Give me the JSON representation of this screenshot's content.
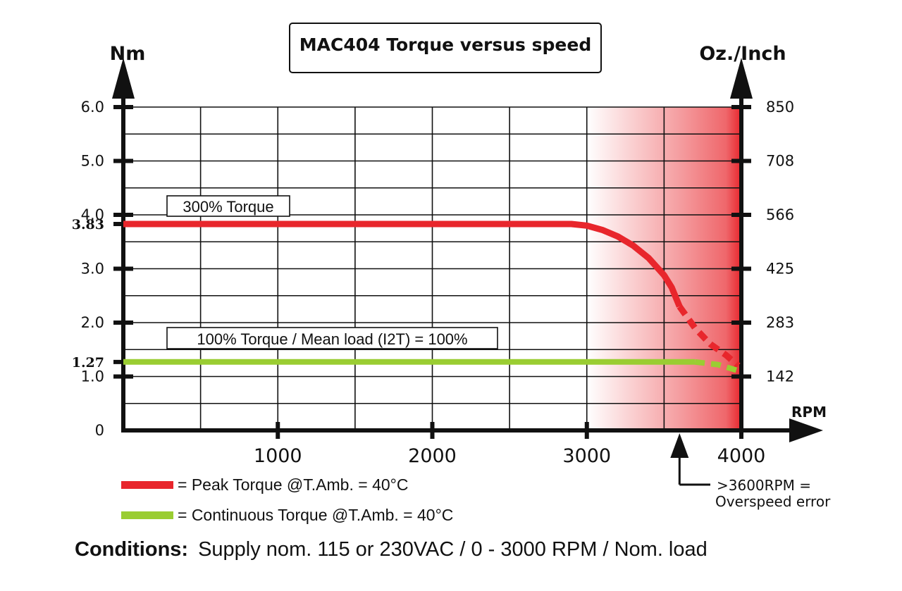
{
  "title": "MAC404 Torque versus speed",
  "chart_data": {
    "type": "line",
    "y_left_label": "Nm",
    "y_right_label": "Oz./Inch",
    "x_label": "RPM",
    "x_range": [
      0,
      4000
    ],
    "y_range": [
      0,
      6.0
    ],
    "x_ticks": [
      {
        "value": 1000,
        "label": "1000"
      },
      {
        "value": 2000,
        "label": "2000"
      },
      {
        "value": 3000,
        "label": "3000"
      },
      {
        "value": 4000,
        "label": "4000"
      }
    ],
    "y_ticks_left": [
      {
        "value": 0,
        "label": "0",
        "bold": false
      },
      {
        "value": 1.0,
        "label": "1.0",
        "bold": false
      },
      {
        "value": 1.27,
        "label": "1.27",
        "bold": true
      },
      {
        "value": 2.0,
        "label": "2.0",
        "bold": false
      },
      {
        "value": 3.0,
        "label": "3.0",
        "bold": false
      },
      {
        "value": 3.83,
        "label": "3.83",
        "bold": true
      },
      {
        "value": 4.0,
        "label": "4.0",
        "bold": false
      },
      {
        "value": 5.0,
        "label": "5.0",
        "bold": false
      },
      {
        "value": 6.0,
        "label": "6.0",
        "bold": false
      }
    ],
    "y_ticks_right": [
      {
        "value": 1.0,
        "label": "142"
      },
      {
        "value": 2.0,
        "label": "283"
      },
      {
        "value": 3.0,
        "label": "425"
      },
      {
        "value": 4.0,
        "label": "566"
      },
      {
        "value": 5.0,
        "label": "708"
      },
      {
        "value": 6.0,
        "label": "850"
      }
    ],
    "grid": true,
    "grid_x_step": 500,
    "grid_y_step": 0.5,
    "shaded_region": {
      "x_start": 3000,
      "x_end": 4000,
      "color": "#e8262c"
    },
    "series": [
      {
        "name": "300% Torque",
        "color": "#e8262c",
        "solid": [
          [
            0,
            3.83
          ],
          [
            2900,
            3.83
          ],
          [
            3000,
            3.8
          ],
          [
            3100,
            3.72
          ],
          [
            3200,
            3.6
          ],
          [
            3300,
            3.43
          ],
          [
            3400,
            3.2
          ],
          [
            3500,
            2.88
          ],
          [
            3550,
            2.65
          ],
          [
            3600,
            2.3
          ]
        ],
        "dashed": [
          [
            3600,
            2.3
          ],
          [
            3700,
            1.9
          ],
          [
            3800,
            1.6
          ],
          [
            3900,
            1.4
          ],
          [
            3980,
            1.2
          ]
        ]
      },
      {
        "name": "100% Torque / Mean load (I2T) = 100%",
        "color": "#9acd32",
        "solid": [
          [
            0,
            1.27
          ],
          [
            3700,
            1.27
          ]
        ],
        "dashed": [
          [
            3700,
            1.27
          ],
          [
            3850,
            1.22
          ],
          [
            3990,
            1.1
          ]
        ]
      }
    ],
    "overspeed": {
      "rpm": 3600,
      "label_line1": ">3600RPM =",
      "label_line2": "Overspeed error"
    }
  },
  "legend": [
    {
      "text": "= Peak Torque @T.Amb. = 40°C",
      "color": "#e8262c"
    },
    {
      "text": "= Continuous Torque @T.Amb. = 40°C",
      "color": "#9acd32"
    }
  ],
  "conditions": {
    "label": "Conditions:",
    "text": "Supply nom. 115 or 230VAC / 0 - 3000 RPM / Nom. load"
  }
}
